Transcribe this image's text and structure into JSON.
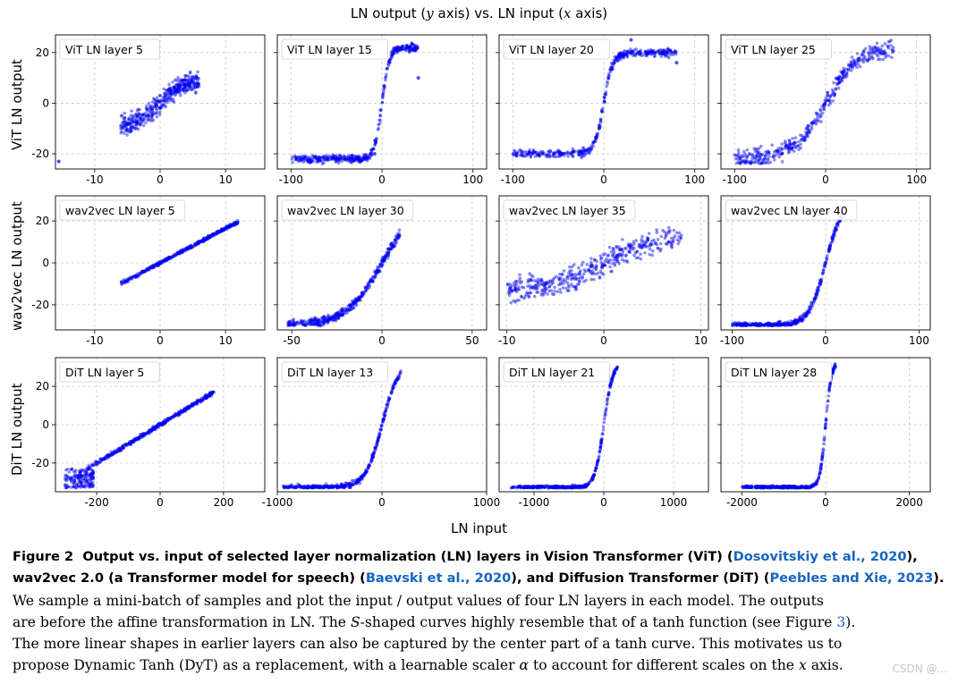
{
  "figure": {
    "title_prefix": "LN output (",
    "title_y": "y",
    "title_middle": " axis) vs. LN input (",
    "title_x": "x",
    "title_suffix": " axis)",
    "xlabel": "LN input",
    "row_labels": [
      "ViT LN output",
      "wav2vec LN output",
      "DiT LN output"
    ]
  },
  "chart_data": {
    "type": "scatter",
    "grid": true,
    "subplots": [
      {
        "row": 0,
        "col": 0,
        "title": "ViT LN layer 5",
        "xlim": [
          -16,
          16
        ],
        "ylim": [
          -26,
          27
        ],
        "xticks": [
          -10,
          0,
          10
        ],
        "yticks": [
          -20,
          0,
          20
        ],
        "shape": "tanh-blob",
        "params": {
          "range": [
            -6,
            6
          ],
          "amp": 9,
          "scale": 3.5,
          "spread": 2.5,
          "outliers": [
            [
              -15.5,
              -23
            ]
          ]
        }
      },
      {
        "row": 0,
        "col": 1,
        "title": "ViT LN layer 15",
        "xlim": [
          -115,
          115
        ],
        "ylim": [
          -26,
          27
        ],
        "xticks": [
          -100,
          0,
          100
        ],
        "yticks": [
          -20,
          0,
          20
        ],
        "shape": "s-curve",
        "params": {
          "range": [
            -100,
            40
          ],
          "amp": 22,
          "scale": 8,
          "spread": 1.5,
          "outliers": [
            [
              -8,
              -20
            ],
            [
              40,
              10
            ]
          ]
        }
      },
      {
        "row": 0,
        "col": 2,
        "title": "ViT LN layer 20",
        "xlim": [
          -115,
          115
        ],
        "ylim": [
          -26,
          27
        ],
        "xticks": [
          -100,
          0,
          100
        ],
        "yticks": [
          -20,
          0,
          20
        ],
        "shape": "s-curve",
        "params": {
          "range": [
            -100,
            80
          ],
          "amp": 20,
          "scale": 10,
          "spread": 1.5,
          "outliers": [
            [
              30,
              25
            ],
            [
              80,
              16
            ]
          ]
        }
      },
      {
        "row": 0,
        "col": 3,
        "title": "ViT LN layer 25",
        "xlim": [
          -115,
          115
        ],
        "ylim": [
          -26,
          27
        ],
        "xticks": [
          -100,
          0,
          100
        ],
        "yticks": [
          -20,
          0,
          20
        ],
        "shape": "tanh-blob",
        "params": {
          "range": [
            -100,
            75
          ],
          "amp": 22,
          "scale": 35,
          "spread": 2.5,
          "outliers": []
        }
      },
      {
        "row": 1,
        "col": 0,
        "title": "wav2vec LN layer 5",
        "xlim": [
          -16,
          16
        ],
        "ylim": [
          -32,
          32
        ],
        "xticks": [
          -10,
          0,
          10
        ],
        "yticks": [
          -20,
          0,
          20
        ],
        "shape": "linear",
        "params": {
          "range": [
            -6,
            12
          ],
          "slope": 1.65,
          "spread": 0.8,
          "outliers": []
        }
      },
      {
        "row": 1,
        "col": 1,
        "title": "wav2vec LN layer 30",
        "xlim": [
          -58,
          58
        ],
        "ylim": [
          -32,
          32
        ],
        "xticks": [
          -50,
          0,
          50
        ],
        "yticks": [
          -20,
          0,
          20
        ],
        "shape": "s-curve",
        "params": {
          "range": [
            -53,
            10
          ],
          "amp": 30,
          "scale": 20,
          "spread": 2,
          "outliers": []
        }
      },
      {
        "row": 1,
        "col": 2,
        "title": "wav2vec LN layer 35",
        "xlim": [
          -10.8,
          10.8
        ],
        "ylim": [
          -32,
          32
        ],
        "xticks": [
          -10,
          0,
          10
        ],
        "yticks": [
          -20,
          0,
          20
        ],
        "shape": "tanh-blob",
        "params": {
          "range": [
            -10,
            8
          ],
          "amp": 14,
          "scale": 6,
          "spread": 4,
          "outliers": []
        }
      },
      {
        "row": 1,
        "col": 3,
        "title": "wav2vec LN layer 40",
        "xlim": [
          -112,
          112
        ],
        "ylim": [
          -32,
          32
        ],
        "xticks": [
          -100,
          0,
          100
        ],
        "yticks": [
          -20,
          0,
          20
        ],
        "shape": "s-curve",
        "params": {
          "range": [
            -100,
            20
          ],
          "amp": 30,
          "scale": 18,
          "spread": 1.5,
          "outliers": []
        }
      },
      {
        "row": 2,
        "col": 0,
        "title": "DiT LN layer 5",
        "xlim": [
          -330,
          330
        ],
        "ylim": [
          -35,
          35
        ],
        "xticks": [
          -200,
          0,
          200
        ],
        "yticks": [
          -20,
          0,
          20
        ],
        "shape": "linear",
        "params": {
          "range": [
            -230,
            170
          ],
          "slope": 0.1,
          "spread": 1,
          "outliers": [],
          "cluster": [
            [
              -300,
              -210
            ],
            [
              -33,
              -23
            ]
          ]
        }
      },
      {
        "row": 2,
        "col": 1,
        "title": "DiT LN layer 13",
        "xlim": [
          -1000,
          1000
        ],
        "ylim": [
          -35,
          35
        ],
        "xticks": [
          -1000,
          0,
          1000
        ],
        "yticks": [
          -20,
          0,
          20
        ],
        "shape": "s-curve",
        "params": {
          "range": [
            -950,
            180
          ],
          "amp": 33,
          "scale": 160,
          "spread": 1.5,
          "outliers": []
        }
      },
      {
        "row": 2,
        "col": 2,
        "title": "DiT LN layer 21",
        "xlim": [
          -1500,
          1500
        ],
        "ylim": [
          -35,
          35
        ],
        "xticks": [
          -1000,
          0,
          1000
        ],
        "yticks": [
          -20,
          0,
          20
        ],
        "shape": "s-curve",
        "params": {
          "range": [
            -1350,
            200
          ],
          "amp": 33,
          "scale": 130,
          "spread": 1.2,
          "outliers": []
        }
      },
      {
        "row": 2,
        "col": 3,
        "title": "DiT LN layer 28",
        "xlim": [
          -2500,
          2500
        ],
        "ylim": [
          -35,
          35
        ],
        "xticks": [
          -2000,
          0,
          2000
        ],
        "yticks": [
          -20,
          0,
          20
        ],
        "shape": "s-curve",
        "params": {
          "range": [
            -2000,
            250
          ],
          "amp": 33,
          "scale": 140,
          "spread": 1,
          "outliers": []
        }
      }
    ]
  },
  "caption": {
    "line1_label": "Figure 2",
    "line1_text": "Output vs. input of selected layer normalization (LN) layers in Vision Transformer (ViT) (",
    "cite1": "Dosovitskiy et al.",
    "cite1_year": "2020",
    "line1_end": "),",
    "line2_text": "wav2vec 2.0 (a Transformer model for speech) (",
    "cite2": "Baevski et al.",
    "cite2_year": "2020",
    "line2_mid": "), and Diffusion Transformer (DiT) (",
    "cite3": "Peebles and Xie",
    "cite3_year": "2023",
    "line2_end": ").",
    "line3": "We sample a mini-batch of samples and plot the input / output values of four LN layers in each model. The outputs",
    "line4a": "are before the affine transformation in LN. The ",
    "line4_s": "S",
    "line4b": "-shaped curves highly resemble that of a tanh function (see Figure ",
    "line4_ref": "3",
    "line4c": ").",
    "line5": "The more linear shapes in earlier layers can also be captured by the center part of a tanh curve. This motivates us to",
    "line6a": "propose Dynamic Tanh (DyT) as a replacement, with a learnable scaler ",
    "line6_alpha": "α",
    "line6b": " to account for different scales on the ",
    "line6_x": "x",
    "line6c": " axis."
  },
  "watermark": "CSDN @..."
}
